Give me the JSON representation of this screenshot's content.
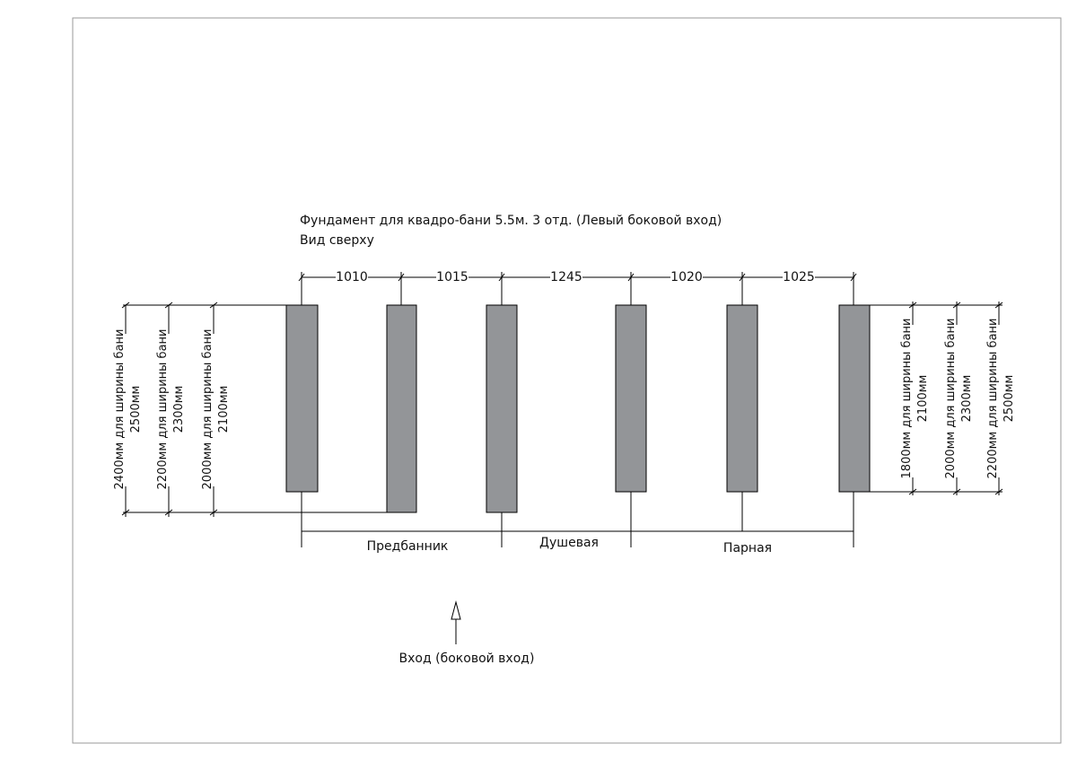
{
  "title": {
    "line1": "Фундамент для квадро-бани 5.5м. 3 отд. (Левый боковой вход)",
    "line2": "Вид сверху"
  },
  "spacings": [
    "1010",
    "1015",
    "1245",
    "1020",
    "1025"
  ],
  "rooms": [
    "Предбанник",
    "Душевая",
    "Парная"
  ],
  "entrance_label": "Вход (боковой вход)",
  "left_dimensions": [
    {
      "line1": "2400мм для ширины бани",
      "line2": "2500мм"
    },
    {
      "line1": "2200мм для ширины бани",
      "line2": "2300мм"
    },
    {
      "line1": "2000мм для ширины бани",
      "line2": "2100мм"
    }
  ],
  "right_dimensions": [
    {
      "line1": "1800мм для ширины бани",
      "line2": "2100мм"
    },
    {
      "line1": "2000мм для ширины бани",
      "line2": "2300мм"
    },
    {
      "line1": "2200мм для ширины бани",
      "line2": "2500мм"
    }
  ],
  "colors": {
    "pier_fill": "#939598",
    "line": "#000000",
    "frame": "#9a9a9a"
  }
}
